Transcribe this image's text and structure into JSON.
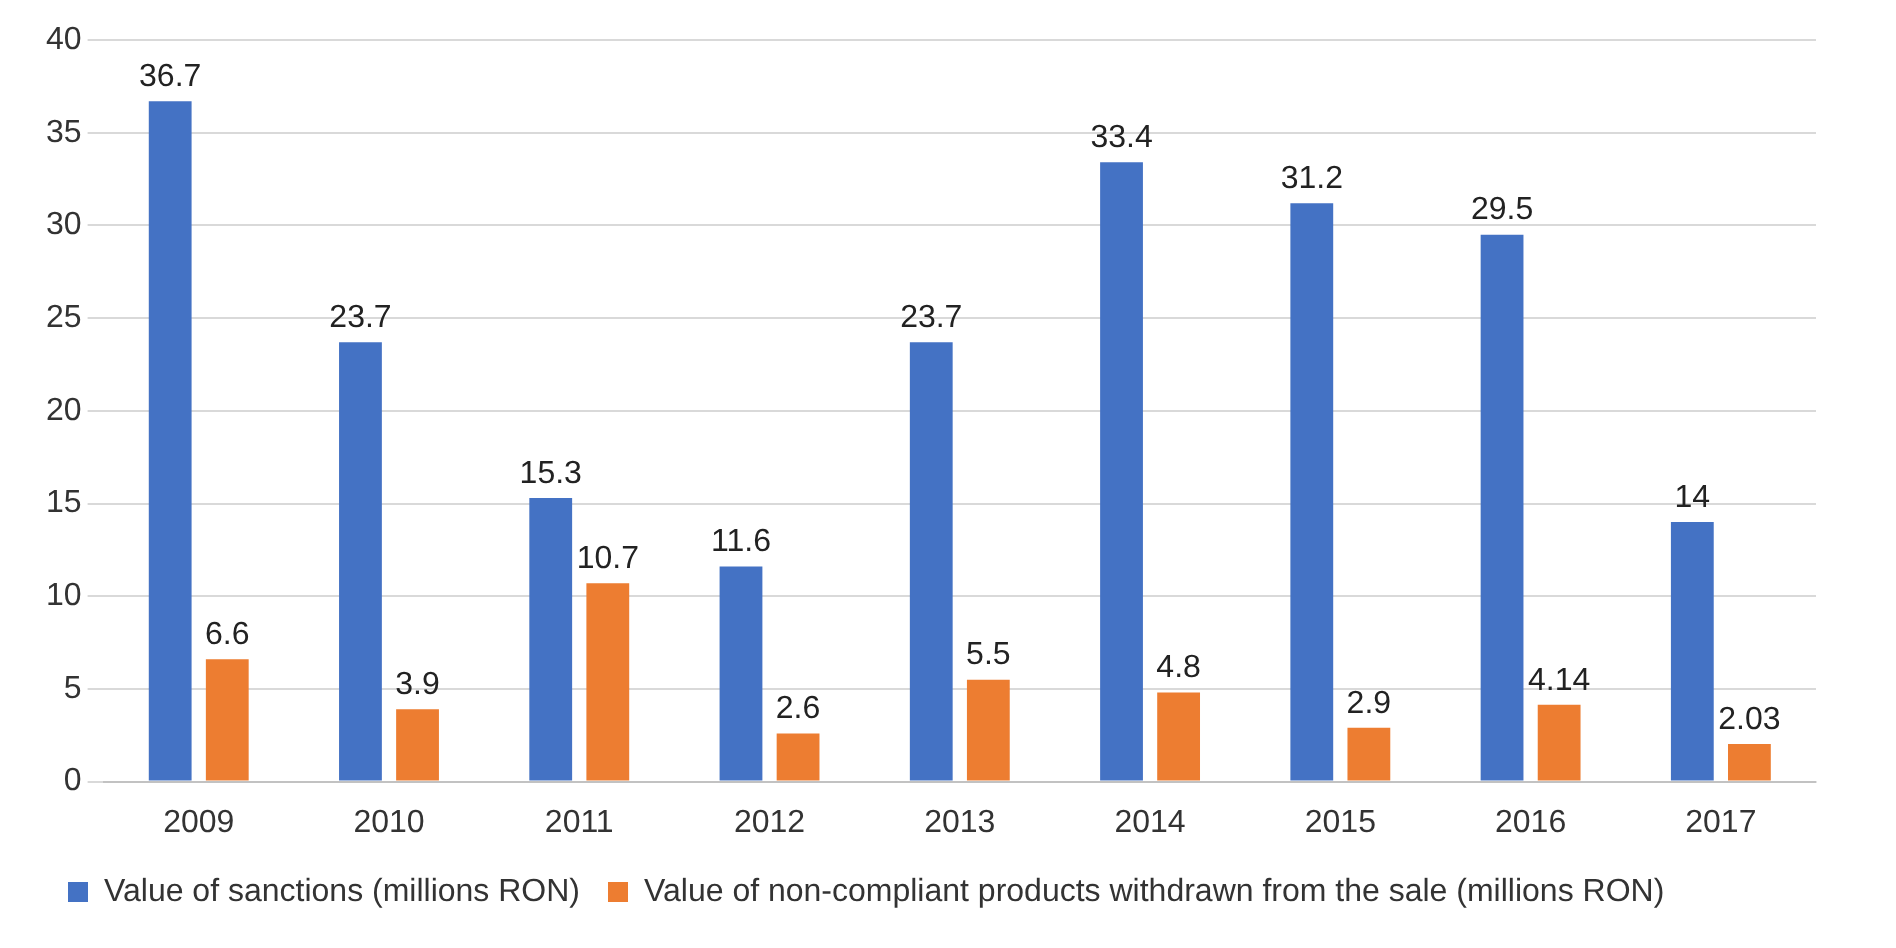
{
  "chart_data": {
    "type": "bar",
    "categories": [
      "2009",
      "2010",
      "2011",
      "2012",
      "2013",
      "2014",
      "2015",
      "2016",
      "2017"
    ],
    "series": [
      {
        "name": "Value of sanctions (millions RON)",
        "color": "#4472c4",
        "values": [
          36.7,
          23.7,
          15.3,
          11.6,
          23.7,
          33.4,
          31.2,
          29.5,
          14
        ]
      },
      {
        "name": "Value of non-compliant products withdrawn from the sale (millions RON)",
        "color": "#ed7d31",
        "values": [
          6.6,
          3.9,
          10.7,
          2.6,
          5.5,
          4.8,
          2.9,
          4.14,
          2.03
        ]
      }
    ],
    "ylim": [
      0,
      40
    ],
    "yticks": [
      0,
      5,
      10,
      15,
      20,
      25,
      30,
      35,
      40
    ],
    "grid": "y",
    "legend": "bottom",
    "data_labels": true
  }
}
